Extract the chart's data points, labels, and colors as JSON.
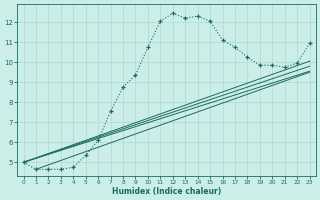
{
  "xlabel": "Humidex (Indice chaleur)",
  "bg_color": "#cceee8",
  "grid_color": "#b8ddd8",
  "line_color": "#1a6b60",
  "xlim": [
    -0.5,
    23.5
  ],
  "ylim": [
    4.3,
    12.9
  ],
  "xticks": [
    0,
    1,
    2,
    3,
    4,
    5,
    6,
    7,
    8,
    9,
    10,
    11,
    12,
    13,
    14,
    15,
    16,
    17,
    18,
    19,
    20,
    21,
    22,
    23
  ],
  "yticks": [
    5,
    6,
    7,
    8,
    9,
    10,
    11,
    12
  ],
  "main_curve_x": [
    0,
    1,
    2,
    3,
    4,
    5,
    6,
    7,
    8,
    9,
    10,
    11,
    12,
    13,
    14,
    15,
    16,
    17,
    18,
    19,
    20,
    21,
    22,
    23
  ],
  "main_curve_y": [
    5.0,
    4.65,
    4.65,
    4.65,
    4.75,
    5.35,
    6.1,
    7.55,
    8.75,
    9.35,
    10.75,
    12.05,
    12.45,
    12.2,
    12.3,
    12.05,
    11.1,
    10.75,
    10.25,
    9.85,
    9.85,
    9.75,
    9.95,
    10.95
  ],
  "straight_lines": [
    {
      "x": [
        0,
        23
      ],
      "y": [
        5.0,
        9.55
      ]
    },
    {
      "x": [
        0,
        23
      ],
      "y": [
        5.0,
        9.8
      ]
    },
    {
      "x": [
        0,
        23
      ],
      "y": [
        5.0,
        10.05
      ]
    },
    {
      "x": [
        1,
        23
      ],
      "y": [
        4.65,
        9.5
      ]
    }
  ]
}
